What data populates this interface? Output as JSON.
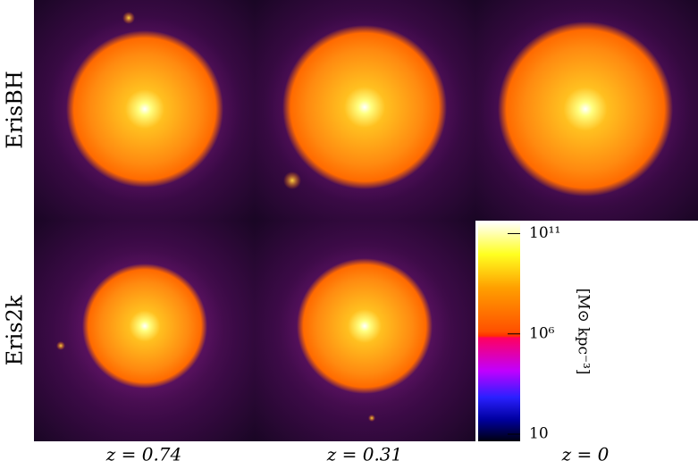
{
  "figure": {
    "row_labels": [
      "ErisBH",
      "Eris2k"
    ],
    "column_labels": [
      "z = 0.74",
      "z = 0.31",
      "z = 0"
    ],
    "colorbar": {
      "label": "[M⊙ kpc⁻³]",
      "log_scale": true,
      "clim": [
        4.4,
        400000000000
      ],
      "ticks": [
        {
          "value": 100000000000,
          "label": "10¹¹"
        },
        {
          "value": 1000000,
          "label": "10⁶"
        },
        10
      ]
    }
  }
}
